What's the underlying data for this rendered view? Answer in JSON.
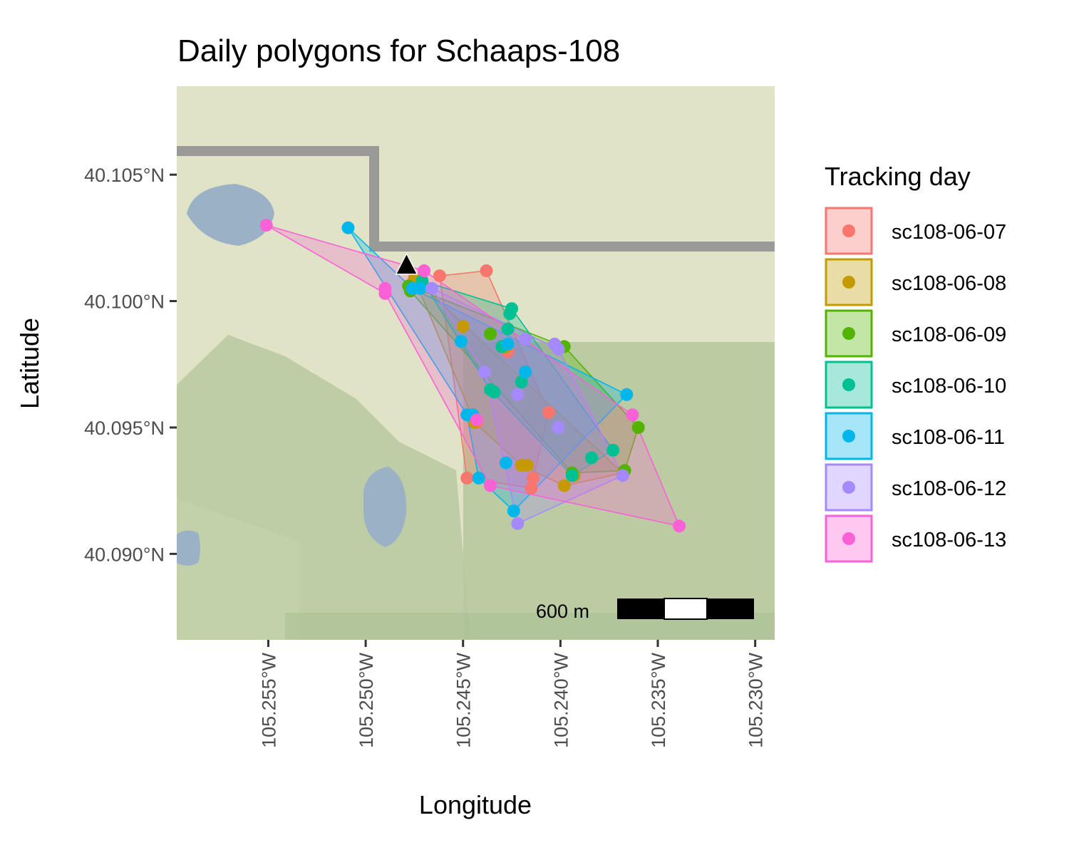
{
  "chart_data": {
    "type": "map",
    "title": "Daily polygons for Schaaps-108",
    "xlabel": "Longitude",
    "ylabel": "Latitude",
    "xlim": [
      -105.2597,
      -105.229
    ],
    "ylim": [
      40.0866,
      40.1085
    ],
    "x_ticks": [
      -105.255,
      -105.25,
      -105.245,
      -105.24,
      -105.235,
      -105.23
    ],
    "x_tick_labels": [
      "105.255°W",
      "105.250°W",
      "105.245°W",
      "105.240°W",
      "105.235°W",
      "105.230°W"
    ],
    "y_ticks": [
      40.09,
      40.095,
      40.1,
      40.105
    ],
    "y_tick_labels": [
      "40.090°N",
      "40.095°N",
      "40.100°N",
      "40.105°N"
    ],
    "legend_title": "Tracking day",
    "legend_position": "right",
    "scale_bar_label": "600 m",
    "den_marker": {
      "shape": "triangle",
      "x": -105.2479,
      "y": 40.1014
    },
    "basemap_colors": {
      "land": "#e0e3c6",
      "vegetation": "#b7c99e",
      "water": "#9bb2c6",
      "road": "#9a9a98"
    },
    "series": [
      {
        "name": "sc108-06-07",
        "color": "#f8766d",
        "points": [
          [
            -105.2438,
            40.1012
          ],
          [
            -105.2448,
            40.093
          ],
          [
            -105.2443,
            40.0952
          ],
          [
            -105.2427,
            40.098
          ],
          [
            -105.2415,
            40.0926
          ],
          [
            -105.2414,
            40.093
          ],
          [
            -105.2406,
            40.0956
          ],
          [
            -105.2462,
            40.101
          ]
        ],
        "hull": [
          [
            -105.2438,
            40.1012
          ],
          [
            -105.2406,
            40.0956
          ],
          [
            -105.2414,
            40.093
          ],
          [
            -105.2415,
            40.0926
          ],
          [
            -105.2448,
            40.093
          ],
          [
            -105.2462,
            40.101
          ]
        ]
      },
      {
        "name": "sc108-06-08",
        "color": "#c49a00",
        "points": [
          [
            -105.2475,
            40.1009
          ],
          [
            -105.245,
            40.099
          ],
          [
            -105.2428,
            40.0982
          ],
          [
            -105.242,
            40.0935
          ],
          [
            -105.2417,
            40.0935
          ],
          [
            -105.2398,
            40.0927
          ],
          [
            -105.2393,
            40.0931
          ],
          [
            -105.2368,
            40.0932
          ],
          [
            -105.2444,
            40.0952
          ]
        ],
        "hull": [
          [
            -105.2475,
            40.1009
          ],
          [
            -105.2368,
            40.0932
          ],
          [
            -105.2398,
            40.0927
          ],
          [
            -105.242,
            40.0935
          ],
          [
            -105.2444,
            40.0952
          ]
        ]
      },
      {
        "name": "sc108-06-09",
        "color": "#53b400",
        "points": [
          [
            -105.2478,
            40.1006
          ],
          [
            -105.2477,
            40.1004
          ],
          [
            -105.2436,
            40.0987
          ],
          [
            -105.243,
            40.0982
          ],
          [
            -105.2398,
            40.0982
          ],
          [
            -105.236,
            40.095
          ],
          [
            -105.2367,
            40.0933
          ],
          [
            -105.2394,
            40.0932
          ]
        ],
        "hull": [
          [
            -105.2478,
            40.1006
          ],
          [
            -105.2398,
            40.0982
          ],
          [
            -105.236,
            40.095
          ],
          [
            -105.2367,
            40.0933
          ],
          [
            -105.2394,
            40.0932
          ],
          [
            -105.2477,
            40.1004
          ]
        ]
      },
      {
        "name": "sc108-06-10",
        "color": "#00c094",
        "points": [
          [
            -105.2471,
            40.1008
          ],
          [
            -105.2425,
            40.0997
          ],
          [
            -105.2426,
            40.0995
          ],
          [
            -105.2427,
            40.0989
          ],
          [
            -105.242,
            40.0968
          ],
          [
            -105.2436,
            40.0965
          ],
          [
            -105.2434,
            40.0964
          ],
          [
            -105.2384,
            40.0938
          ],
          [
            -105.2394,
            40.0931
          ],
          [
            -105.2373,
            40.0941
          ],
          [
            -105.243,
            40.0982
          ]
        ],
        "hull": [
          [
            -105.2471,
            40.1008
          ],
          [
            -105.2425,
            40.0997
          ],
          [
            -105.2373,
            40.0941
          ],
          [
            -105.2394,
            40.0931
          ],
          [
            -105.2436,
            40.0965
          ]
        ]
      },
      {
        "name": "sc108-06-11",
        "color": "#00b6eb",
        "points": [
          [
            -105.2509,
            40.1029
          ],
          [
            -105.2476,
            40.1005
          ],
          [
            -105.2472,
            40.1005
          ],
          [
            -105.2427,
            40.0983
          ],
          [
            -105.2418,
            40.0972
          ],
          [
            -105.2445,
            40.0955
          ],
          [
            -105.2442,
            40.093
          ],
          [
            -105.2428,
            40.0936
          ],
          [
            -105.2424,
            40.0917
          ],
          [
            -105.2366,
            40.0963
          ],
          [
            -105.2451,
            40.0984
          ],
          [
            -105.2448,
            40.0955
          ]
        ],
        "hull": [
          [
            -105.2509,
            40.1029
          ],
          [
            -105.2476,
            40.1005
          ],
          [
            -105.2366,
            40.0963
          ],
          [
            -105.2424,
            40.0917
          ],
          [
            -105.2442,
            40.093
          ],
          [
            -105.2448,
            40.0955
          ]
        ]
      },
      {
        "name": "sc108-06-12",
        "color": "#a58aff",
        "points": [
          [
            -105.2418,
            40.0985
          ],
          [
            -105.2403,
            40.0983
          ],
          [
            -105.2401,
            40.0981
          ],
          [
            -105.2439,
            40.0972
          ],
          [
            -105.2422,
            40.0963
          ],
          [
            -105.2401,
            40.095
          ],
          [
            -105.2368,
            40.0931
          ],
          [
            -105.2422,
            40.0912
          ],
          [
            -105.2466,
            40.1005
          ]
        ],
        "hull": [
          [
            -105.2466,
            40.1005
          ],
          [
            -105.2401,
            40.0981
          ],
          [
            -105.2368,
            40.0931
          ],
          [
            -105.2422,
            40.0912
          ],
          [
            -105.2439,
            40.0972
          ]
        ]
      },
      {
        "name": "sc108-06-13",
        "color": "#fb61d7",
        "points": [
          [
            -105.2551,
            40.103
          ],
          [
            -105.249,
            40.1005
          ],
          [
            -105.249,
            40.1003
          ],
          [
            -105.247,
            40.1012
          ],
          [
            -105.2443,
            40.0953
          ],
          [
            -105.2436,
            40.0927
          ],
          [
            -105.2363,
            40.0955
          ],
          [
            -105.2339,
            40.0911
          ]
        ],
        "hull": [
          [
            -105.2551,
            40.103
          ],
          [
            -105.247,
            40.1012
          ],
          [
            -105.2363,
            40.0955
          ],
          [
            -105.2339,
            40.0911
          ],
          [
            -105.2436,
            40.0927
          ],
          [
            -105.249,
            40.1003
          ]
        ]
      }
    ]
  }
}
